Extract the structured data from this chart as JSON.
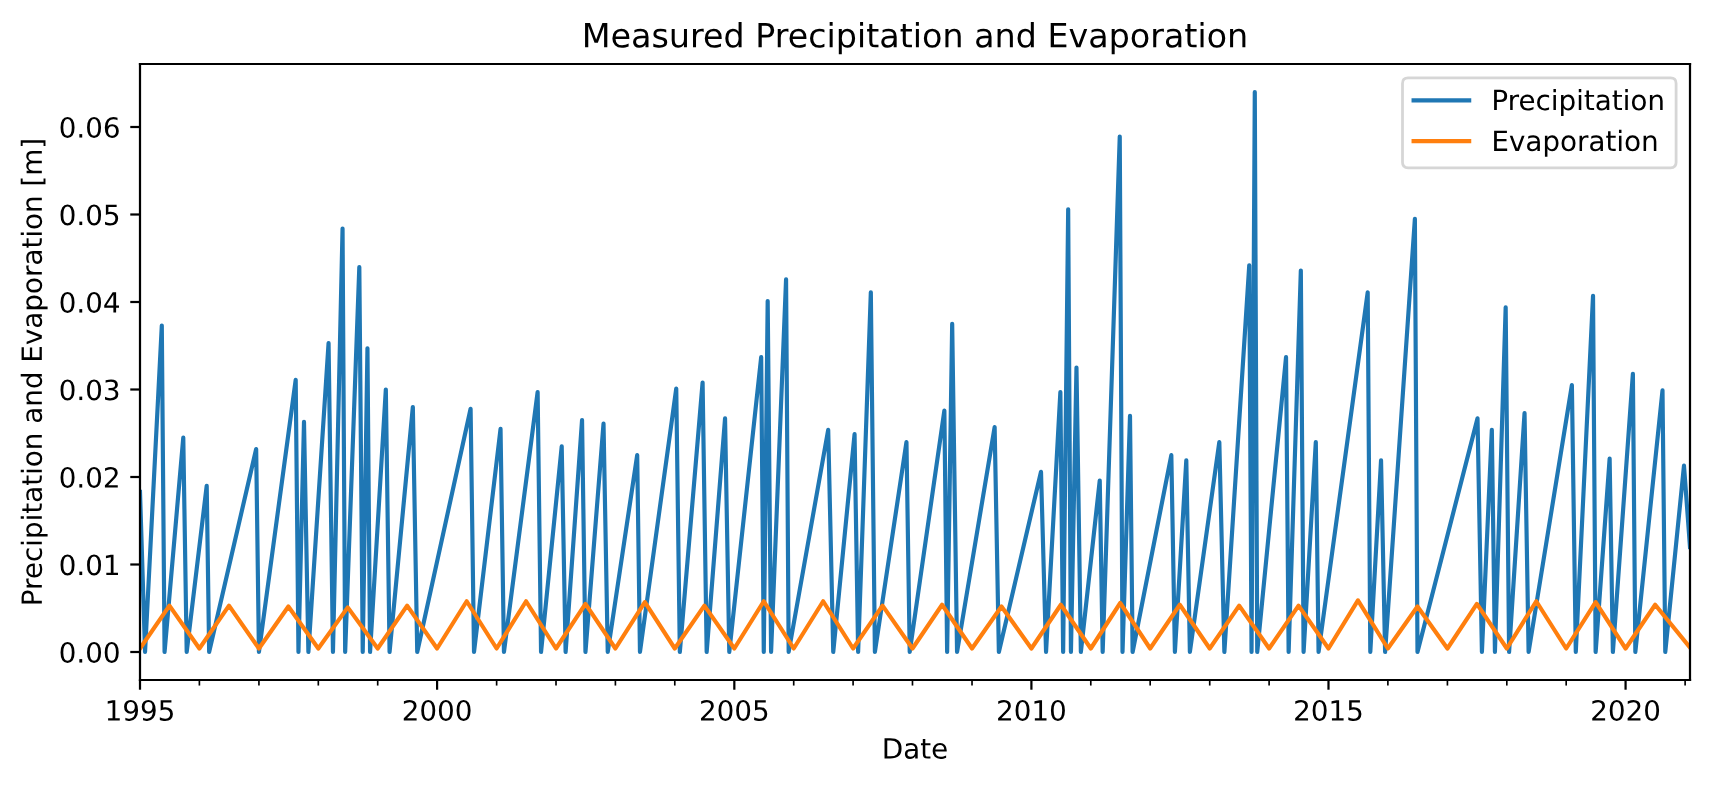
{
  "chart_data": {
    "type": "line",
    "title": "Measured Precipitation and Evaporation",
    "xlabel": "Date",
    "ylabel": "Precipitation and Evaporation [m]",
    "xlim": [
      "1995-01-01",
      "2021-01-31"
    ],
    "xticks": [
      {
        "value": "1995-01-01",
        "label": "1995"
      },
      {
        "value": "2000-01-01",
        "label": "2000"
      },
      {
        "value": "2005-01-01",
        "label": "2005"
      },
      {
        "value": "2010-01-01",
        "label": "2010"
      },
      {
        "value": "2015-01-01",
        "label": "2015"
      },
      {
        "value": "2020-01-01",
        "label": "2020"
      }
    ],
    "ylim": [
      -0.0032,
      0.0672
    ],
    "yticks": [
      {
        "value": 0,
        "label": "0.00"
      },
      {
        "value": 0.01,
        "label": "0.01"
      },
      {
        "value": 0.02,
        "label": "0.02"
      },
      {
        "value": 0.03,
        "label": "0.03"
      },
      {
        "value": 0.04,
        "label": "0.04"
      },
      {
        "value": 0.05,
        "label": "0.05"
      },
      {
        "value": 0.06,
        "label": "0.06"
      }
    ],
    "grid": false,
    "legend": "top right",
    "marker": "none",
    "line_style": "solid",
    "series": [
      {
        "name": "Precipitation",
        "color": "#1f77b4",
        "x": [
          "1995-01-01",
          "1995-02-01",
          "1995-05-15",
          "1995-06-01",
          "1995-09-24",
          "1995-10-15",
          "1996-02-15",
          "1996-03-01",
          "1996-12-15",
          "1997-01-01",
          "1997-08-15",
          "1997-09-01",
          "1997-10-05",
          "1997-11-01",
          "1998-03-05",
          "1998-04-01",
          "1998-05-30",
          "1998-06-15",
          "1998-09-10",
          "1998-10-01",
          "1998-10-30",
          "1998-11-15",
          "1999-02-20",
          "1999-03-15",
          "1999-08-05",
          "1999-09-01",
          "2000-07-25",
          "2000-08-15",
          "2001-01-25",
          "2001-02-15",
          "2001-09-10",
          "2001-10-01",
          "2002-02-05",
          "2002-03-01",
          "2002-06-10",
          "2002-07-01",
          "2002-10-20",
          "2002-11-15",
          "2003-05-15",
          "2003-06-01",
          "2004-01-10",
          "2004-02-01",
          "2004-06-20",
          "2004-07-15",
          "2004-11-05",
          "2004-12-01",
          "2005-06-15",
          "2005-07-01",
          "2005-07-25",
          "2005-08-15",
          "2005-11-15",
          "2005-12-01",
          "2006-08-01",
          "2006-09-01",
          "2007-01-10",
          "2007-02-01",
          "2007-04-20",
          "2007-05-15",
          "2007-11-25",
          "2007-12-15",
          "2008-07-15",
          "2008-08-01",
          "2008-09-01",
          "2008-10-01",
          "2009-05-20",
          "2009-06-15",
          "2010-03-01",
          "2010-04-01",
          "2010-06-28",
          "2010-07-15",
          "2010-08-15",
          "2010-09-01",
          "2010-10-05",
          "2010-11-01",
          "2011-02-25",
          "2011-03-15",
          "2011-06-28",
          "2011-07-15",
          "2011-08-30",
          "2011-09-15",
          "2012-05-10",
          "2012-06-01",
          "2012-08-10",
          "2012-09-01",
          "2013-03-01",
          "2013-04-01",
          "2013-09-01",
          "2013-09-15",
          "2013-10-05",
          "2013-10-20",
          "2014-04-15",
          "2014-05-01",
          "2014-07-15",
          "2014-08-01",
          "2014-10-15",
          "2014-11-01",
          "2015-08-30",
          "2015-09-15",
          "2015-11-20",
          "2015-12-15",
          "2016-06-15",
          "2016-07-01",
          "2017-07-05",
          "2017-08-01",
          "2017-10-01",
          "2017-10-20",
          "2017-12-25",
          "2018-01-15",
          "2018-04-20",
          "2018-05-15",
          "2019-02-05",
          "2019-03-01",
          "2019-06-15",
          "2019-07-01",
          "2019-09-25",
          "2019-10-15",
          "2020-02-15",
          "2020-03-01",
          "2020-08-15",
          "2020-09-01",
          "2020-12-25",
          "2021-01-31"
        ],
        "values": [
          0.0183,
          0,
          0.0373,
          0,
          0.0245,
          0,
          0.019,
          0,
          0.0232,
          0,
          0.0311,
          0,
          0.0263,
          0,
          0.0353,
          0,
          0.0484,
          0,
          0.044,
          0,
          0.0347,
          0,
          0.03,
          0,
          0.028,
          0,
          0.0278,
          0,
          0.0255,
          0,
          0.0297,
          0,
          0.0235,
          0,
          0.0265,
          0,
          0.0261,
          0,
          0.0225,
          0,
          0.0301,
          0,
          0.0308,
          0,
          0.0267,
          0,
          0.0337,
          0,
          0.0401,
          0,
          0.0426,
          0,
          0.0254,
          0,
          0.0249,
          0,
          0.0411,
          0,
          0.024,
          0,
          0.0276,
          0,
          0.0375,
          0,
          0.0257,
          0,
          0.0206,
          0,
          0.0297,
          0,
          0.0506,
          0,
          0.0325,
          0,
          0.0196,
          0,
          0.0589,
          0,
          0.027,
          0,
          0.0225,
          0,
          0.0219,
          0,
          0.024,
          0,
          0.0442,
          0,
          0.064,
          0,
          0.0337,
          0,
          0.0436,
          0,
          0.024,
          0,
          0.0411,
          0,
          0.0219,
          0,
          0.0495,
          0,
          0.0267,
          0,
          0.0254,
          0,
          0.0394,
          0,
          0.0273,
          0,
          0.0305,
          0,
          0.0407,
          0,
          0.0221,
          0,
          0.0318,
          0,
          0.0299,
          0,
          0.0213,
          0.012
        ]
      },
      {
        "name": "Evaporation",
        "color": "#ff7f0e",
        "x": [
          "1995-01-01",
          "1995-07-01",
          "1996-01-01",
          "1996-07-01",
          "1997-01-01",
          "1997-07-01",
          "1998-01-01",
          "1998-07-01",
          "1999-01-01",
          "1999-07-01",
          "2000-01-01",
          "2000-07-01",
          "2001-01-01",
          "2001-07-01",
          "2002-01-01",
          "2002-07-01",
          "2003-01-01",
          "2003-07-01",
          "2004-01-01",
          "2004-07-01",
          "2005-01-01",
          "2005-07-01",
          "2006-01-01",
          "2006-07-01",
          "2007-01-01",
          "2007-07-01",
          "2008-01-01",
          "2008-07-01",
          "2009-01-01",
          "2009-07-01",
          "2010-01-01",
          "2010-07-01",
          "2011-01-01",
          "2011-07-01",
          "2012-01-01",
          "2012-07-01",
          "2013-01-01",
          "2013-07-01",
          "2014-01-01",
          "2014-07-01",
          "2015-01-01",
          "2015-07-01",
          "2016-01-01",
          "2016-07-01",
          "2017-01-01",
          "2017-07-01",
          "2018-01-01",
          "2018-07-01",
          "2019-01-01",
          "2019-07-01",
          "2020-01-01",
          "2020-07-01",
          "2021-01-31"
        ],
        "values": [
          0.0004,
          0.0053,
          0.0004,
          0.0053,
          0.0004,
          0.0052,
          0.0004,
          0.0051,
          0.0004,
          0.0053,
          0.0004,
          0.0058,
          0.0004,
          0.0058,
          0.0004,
          0.0055,
          0.0004,
          0.0057,
          0.0004,
          0.0053,
          0.0004,
          0.0058,
          0.0004,
          0.0058,
          0.0004,
          0.0053,
          0.0004,
          0.0054,
          0.0004,
          0.0052,
          0.0004,
          0.0054,
          0.0004,
          0.0056,
          0.0004,
          0.0054,
          0.0004,
          0.0053,
          0.0004,
          0.0053,
          0.0004,
          0.0059,
          0.0004,
          0.0052,
          0.0004,
          0.0055,
          0.0004,
          0.0058,
          0.0004,
          0.0057,
          0.0004,
          0.0054,
          0.0005
        ]
      }
    ]
  }
}
